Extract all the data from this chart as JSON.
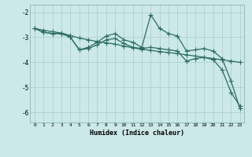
{
  "xlabel": "Humidex (Indice chaleur)",
  "bg_color": "#cce8e8",
  "line_color": "#2d6e60",
  "grid_color": "#aacccc",
  "xlim": [
    -0.5,
    23.5
  ],
  "ylim": [
    -6.4,
    -1.7
  ],
  "xticks": [
    0,
    1,
    2,
    3,
    4,
    5,
    6,
    7,
    8,
    9,
    10,
    11,
    12,
    13,
    14,
    15,
    16,
    17,
    18,
    19,
    20,
    21,
    22,
    23
  ],
  "yticks": [
    -6,
    -5,
    -4,
    -3,
    -2
  ],
  "line1_x": [
    0,
    1,
    2,
    3,
    4,
    5,
    6,
    7,
    8,
    9,
    10,
    11,
    12,
    13,
    14,
    15,
    16,
    17,
    18,
    19,
    20,
    21,
    22,
    23
  ],
  "line1_y": [
    -2.65,
    -2.8,
    -2.85,
    -2.85,
    -3.0,
    -3.5,
    -3.4,
    -3.2,
    -2.95,
    -2.85,
    -3.1,
    -3.2,
    -3.4,
    -2.1,
    -2.65,
    -2.85,
    -2.95,
    -3.55,
    -3.5,
    -3.45,
    -3.55,
    -3.85,
    -4.75,
    -5.85
  ],
  "line2_x": [
    0,
    1,
    2,
    3,
    4,
    5,
    6,
    7,
    8,
    9,
    10,
    11,
    12,
    13,
    14,
    15,
    16,
    17,
    18,
    19,
    20,
    21,
    22,
    23
  ],
  "line2_y": [
    -2.65,
    -2.72,
    -2.78,
    -2.83,
    -2.93,
    -3.03,
    -3.1,
    -3.17,
    -3.22,
    -3.27,
    -3.35,
    -3.42,
    -3.48,
    -3.52,
    -3.57,
    -3.61,
    -3.65,
    -3.7,
    -3.75,
    -3.8,
    -3.85,
    -3.9,
    -3.95,
    -4.0
  ],
  "line3_x": [
    0,
    1,
    2,
    3,
    4,
    5,
    6,
    7,
    8,
    9,
    10,
    11,
    12,
    13,
    14,
    15,
    16,
    17,
    18,
    19,
    20,
    21,
    22,
    23
  ],
  "line3_y": [
    -2.65,
    -2.8,
    -2.85,
    -2.85,
    -3.0,
    -3.5,
    -3.45,
    -3.3,
    -3.1,
    -3.05,
    -3.25,
    -3.4,
    -3.45,
    -3.4,
    -3.45,
    -3.5,
    -3.55,
    -3.95,
    -3.85,
    -3.8,
    -3.9,
    -4.3,
    -5.2,
    -5.75
  ]
}
